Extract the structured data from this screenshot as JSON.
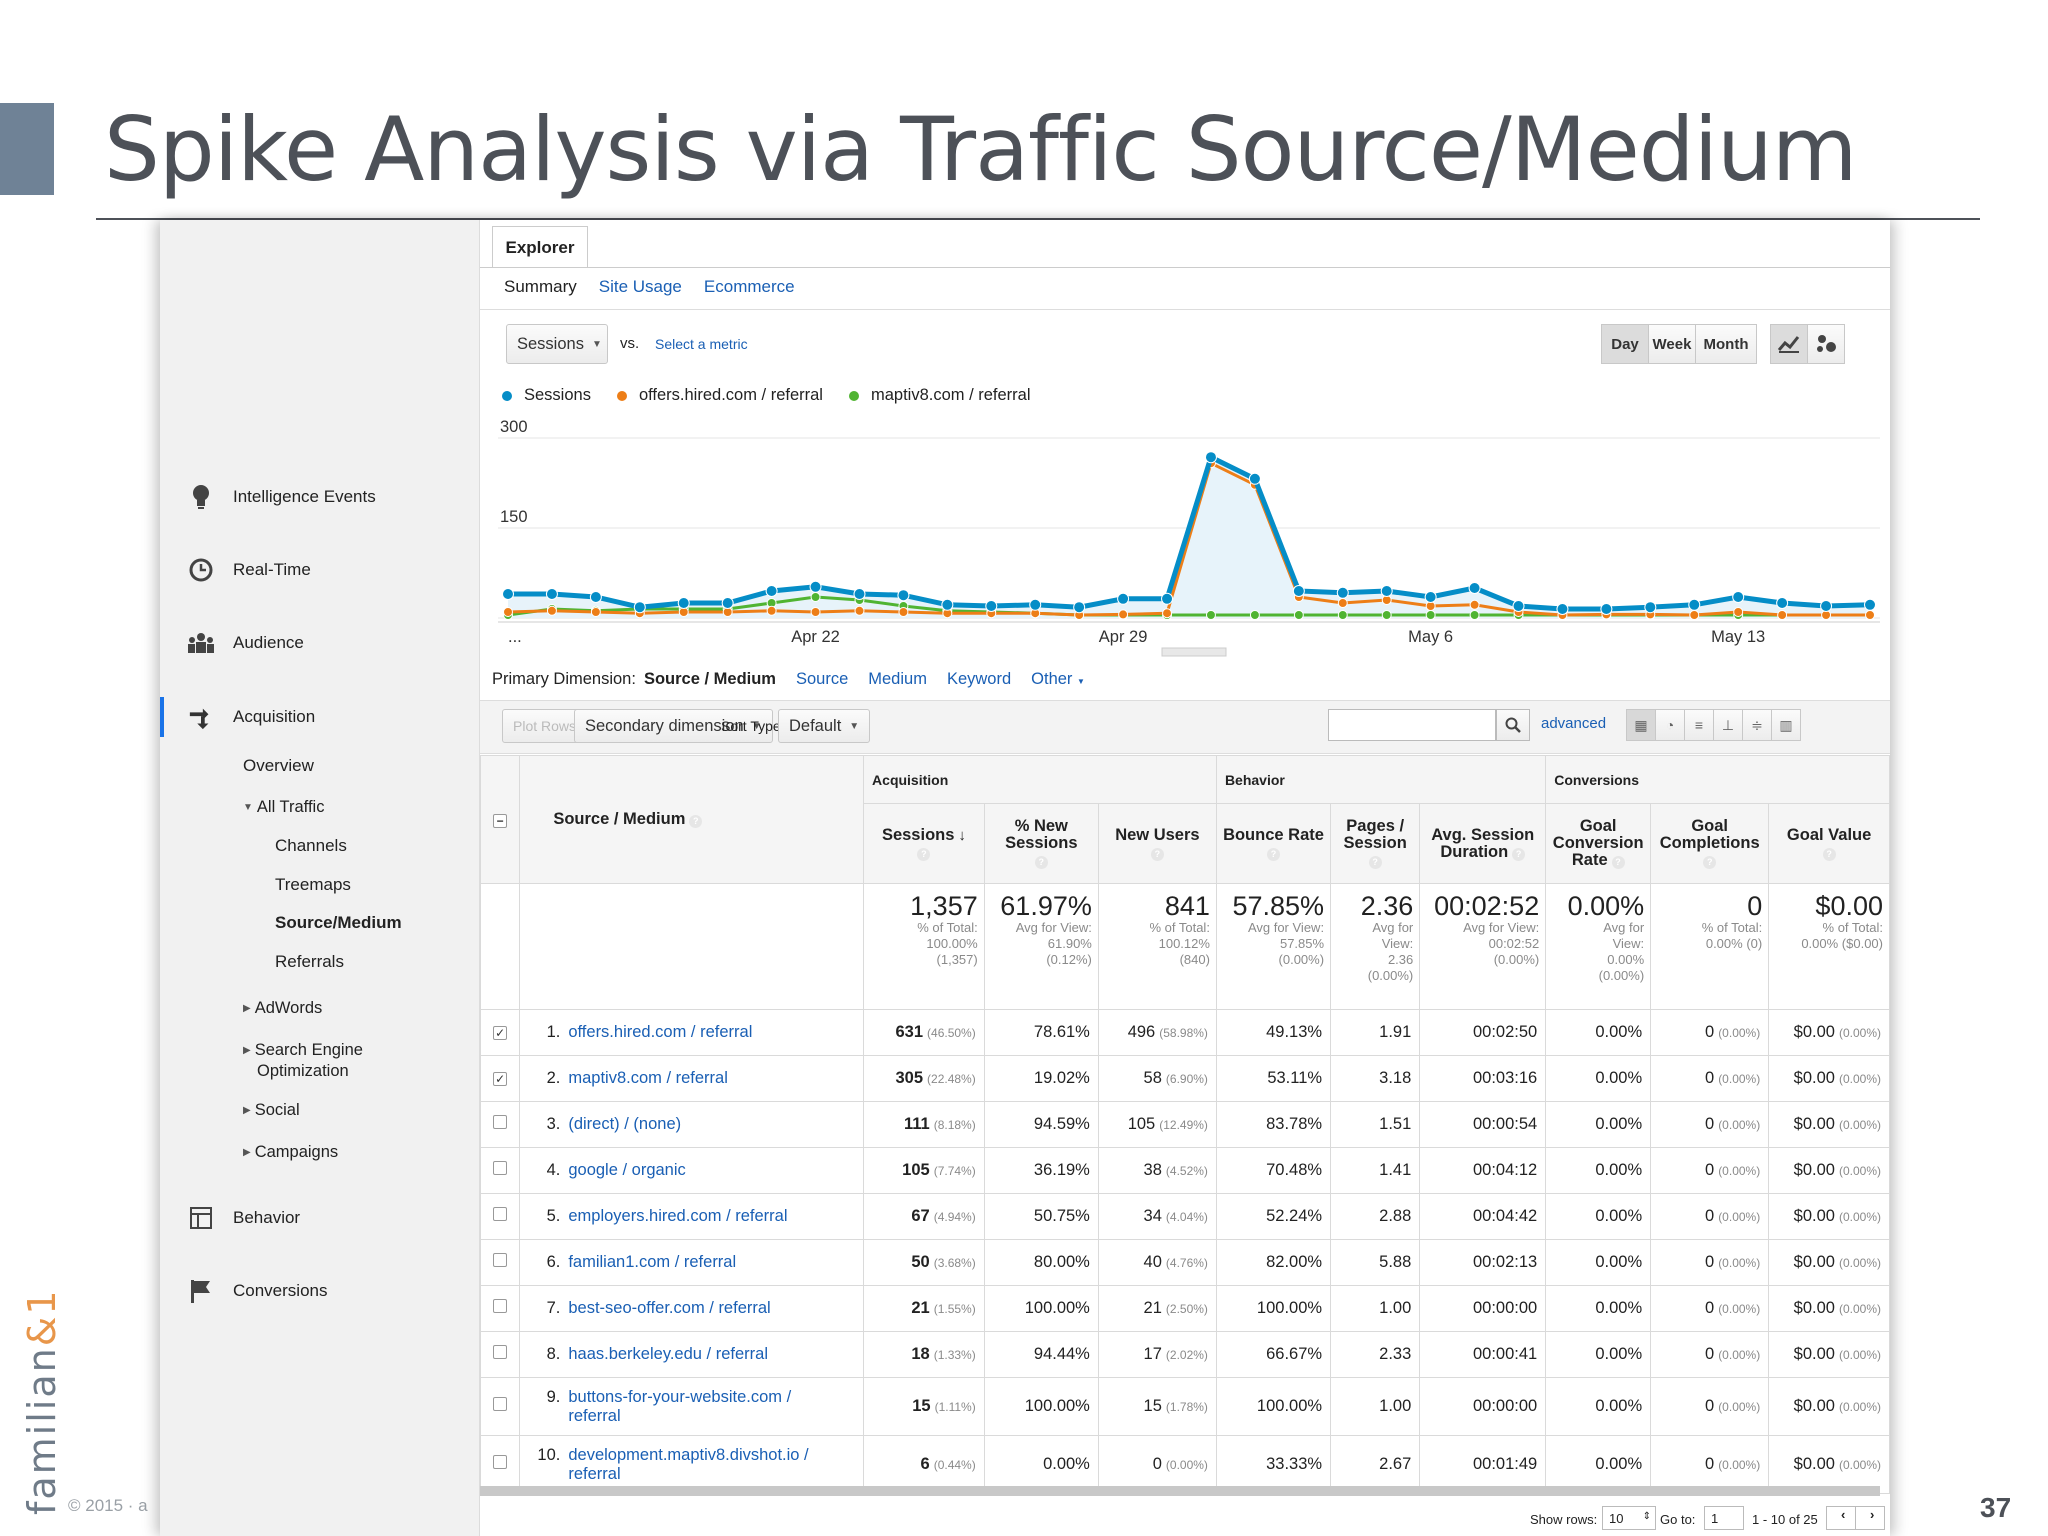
{
  "slide": {
    "title": "Spike Analysis via Traffic Source/Medium",
    "brand_main": "familian",
    "brand_accent": "&1",
    "footer": "© 2015 · a",
    "page_number": "37",
    "accent_color": "#6f8296"
  },
  "sidebar": {
    "main_items": [
      {
        "label": "Intelligence Events",
        "icon": "lightbulb-icon"
      },
      {
        "label": "Real-Time",
        "icon": "clock-icon"
      },
      {
        "label": "Audience",
        "icon": "people-icon"
      },
      {
        "label": "Acquisition",
        "icon": "acquisition-arrows-icon"
      },
      {
        "label": "Behavior",
        "icon": "window-icon"
      },
      {
        "label": "Conversions",
        "icon": "flag-icon"
      }
    ],
    "acq_sub": {
      "overview": "Overview",
      "all_traffic": "All Traffic",
      "channels": "Channels",
      "treemaps": "Treemaps",
      "source_medium": "Source/Medium",
      "referrals": "Referrals",
      "adwords": "AdWords",
      "seo_line1": "Search Engine",
      "seo_line2": "Optimization",
      "social": "Social",
      "campaigns": "Campaigns"
    }
  },
  "explorer": {
    "tab": "Explorer",
    "subtabs": [
      "Summary",
      "Site Usage",
      "Ecommerce"
    ],
    "metric_select": "Sessions",
    "vs": "vs.",
    "select_metric": "Select a metric",
    "period_buttons": [
      "Day",
      "Week",
      "Month"
    ],
    "active_period": "Day"
  },
  "chart_data": {
    "type": "line",
    "title": "",
    "xlabel": "",
    "ylabel": "",
    "y_ticks": [
      "300",
      "150"
    ],
    "ylim": [
      0,
      300
    ],
    "x_tick_labels": [
      "...",
      "Apr 22",
      "Apr 29",
      "May 6",
      "May 13"
    ],
    "x_tick_index": [
      0,
      7,
      14,
      21,
      28
    ],
    "legend_position": "top-left",
    "series": [
      {
        "name": "Sessions",
        "color": "#058dc7",
        "values": [
          40,
          40,
          35,
          18,
          25,
          25,
          45,
          52,
          40,
          38,
          22,
          20,
          22,
          18,
          32,
          32,
          268,
          232,
          45,
          42,
          45,
          35,
          50,
          20,
          15,
          15,
          18,
          22,
          35,
          25,
          20,
          22
        ]
      },
      {
        "name": "offers.hired.com / referral",
        "color": "#ed7e17",
        "values": [
          10,
          12,
          10,
          8,
          10,
          10,
          12,
          10,
          12,
          10,
          8,
          8,
          8,
          5,
          6,
          8,
          258,
          222,
          35,
          25,
          30,
          20,
          22,
          10,
          5,
          6,
          6,
          5,
          10,
          5,
          5,
          5
        ]
      },
      {
        "name": "maptiv8.com / referral",
        "color": "#50b432",
        "values": [
          5,
          15,
          12,
          15,
          15,
          15,
          25,
          35,
          30,
          20,
          12,
          10,
          8,
          5,
          5,
          5,
          5,
          5,
          5,
          5,
          5,
          5,
          5,
          5,
          5,
          5,
          5,
          5,
          5,
          5,
          5,
          5
        ]
      }
    ]
  },
  "dimension": {
    "label": "Primary Dimension:",
    "current": "Source / Medium",
    "options": [
      "Source",
      "Medium",
      "Keyword",
      "Other"
    ]
  },
  "toolbar": {
    "plot_rows": "Plot Rows",
    "secondary": "Secondary dimension",
    "sort_label": "Sort Type:",
    "sort_value": "Default",
    "advanced": "advanced"
  },
  "table": {
    "groups": {
      "acquisition": "Acquisition",
      "behavior": "Behavior",
      "conversions": "Conversions"
    },
    "columns": {
      "source": "Source / Medium",
      "sessions": "Sessions",
      "new_sessions": [
        "% New",
        "Sessions"
      ],
      "new_users": "New Users",
      "bounce": "Bounce Rate",
      "pages": [
        "Pages /",
        "Session"
      ],
      "duration": [
        "Avg. Session",
        "Duration"
      ],
      "conv_rate": [
        "Goal",
        "Conversion",
        "Rate"
      ],
      "completions": [
        "Goal",
        "Completions"
      ],
      "goal_value": "Goal Value"
    },
    "totals": [
      {
        "big": "1,357",
        "sub": [
          "% of Total:",
          "100.00%",
          "(1,357)"
        ]
      },
      {
        "big": "61.97%",
        "sub": [
          "Avg for View:",
          "61.90%",
          "(0.12%)"
        ]
      },
      {
        "big": "841",
        "sub": [
          "% of Total:",
          "100.12%",
          "(840)"
        ]
      },
      {
        "big": "57.85%",
        "sub": [
          "Avg for View:",
          "57.85%",
          "(0.00%)"
        ]
      },
      {
        "big": "2.36",
        "sub": [
          "Avg for",
          "View:",
          "2.36",
          "(0.00%)"
        ]
      },
      {
        "big": "00:02:52",
        "sub": [
          "Avg for View:",
          "00:02:52",
          "(0.00%)"
        ]
      },
      {
        "big": "0.00%",
        "sub": [
          "Avg for",
          "View:",
          "0.00%",
          "(0.00%)"
        ]
      },
      {
        "big": "0",
        "sub": [
          "% of Total:",
          "0.00% (0)"
        ]
      },
      {
        "big": "$0.00",
        "sub": [
          "% of Total:",
          "0.00% ($0.00)"
        ]
      }
    ],
    "rows": [
      {
        "idx": "1.",
        "checked": true,
        "src": [
          "offers.hired.com / referral"
        ],
        "sessions": "631",
        "sessions_pct": "(46.50%)",
        "new_sessions": "78.61%",
        "new_users": "496",
        "new_users_pct": "(58.98%)",
        "bounce": "49.13%",
        "pages": "1.91",
        "duration": "00:02:50",
        "conv": "0.00%",
        "comp": "0",
        "comp_pct": "(0.00%)",
        "value": "$0.00",
        "value_pct": "(0.00%)"
      },
      {
        "idx": "2.",
        "checked": true,
        "src": [
          "maptiv8.com / referral"
        ],
        "sessions": "305",
        "sessions_pct": "(22.48%)",
        "new_sessions": "19.02%",
        "new_users": "58",
        "new_users_pct": "(6.90%)",
        "bounce": "53.11%",
        "pages": "3.18",
        "duration": "00:03:16",
        "conv": "0.00%",
        "comp": "0",
        "comp_pct": "(0.00%)",
        "value": "$0.00",
        "value_pct": "(0.00%)"
      },
      {
        "idx": "3.",
        "checked": false,
        "src": [
          "(direct) / (none)"
        ],
        "sessions": "111",
        "sessions_pct": "(8.18%)",
        "new_sessions": "94.59%",
        "new_users": "105",
        "new_users_pct": "(12.49%)",
        "bounce": "83.78%",
        "pages": "1.51",
        "duration": "00:00:54",
        "conv": "0.00%",
        "comp": "0",
        "comp_pct": "(0.00%)",
        "value": "$0.00",
        "value_pct": "(0.00%)"
      },
      {
        "idx": "4.",
        "checked": false,
        "src": [
          "google / organic"
        ],
        "sessions": "105",
        "sessions_pct": "(7.74%)",
        "new_sessions": "36.19%",
        "new_users": "38",
        "new_users_pct": "(4.52%)",
        "bounce": "70.48%",
        "pages": "1.41",
        "duration": "00:04:12",
        "conv": "0.00%",
        "comp": "0",
        "comp_pct": "(0.00%)",
        "value": "$0.00",
        "value_pct": "(0.00%)"
      },
      {
        "idx": "5.",
        "checked": false,
        "src": [
          "employers.hired.com / referral"
        ],
        "sessions": "67",
        "sessions_pct": "(4.94%)",
        "new_sessions": "50.75%",
        "new_users": "34",
        "new_users_pct": "(4.04%)",
        "bounce": "52.24%",
        "pages": "2.88",
        "duration": "00:04:42",
        "conv": "0.00%",
        "comp": "0",
        "comp_pct": "(0.00%)",
        "value": "$0.00",
        "value_pct": "(0.00%)"
      },
      {
        "idx": "6.",
        "checked": false,
        "src": [
          "familian1.com / referral"
        ],
        "sessions": "50",
        "sessions_pct": "(3.68%)",
        "new_sessions": "80.00%",
        "new_users": "40",
        "new_users_pct": "(4.76%)",
        "bounce": "82.00%",
        "pages": "5.88",
        "duration": "00:02:13",
        "conv": "0.00%",
        "comp": "0",
        "comp_pct": "(0.00%)",
        "value": "$0.00",
        "value_pct": "(0.00%)"
      },
      {
        "idx": "7.",
        "checked": false,
        "src": [
          "best-seo-offer.com / referral"
        ],
        "sessions": "21",
        "sessions_pct": "(1.55%)",
        "new_sessions": "100.00%",
        "new_users": "21",
        "new_users_pct": "(2.50%)",
        "bounce": "100.00%",
        "pages": "1.00",
        "duration": "00:00:00",
        "conv": "0.00%",
        "comp": "0",
        "comp_pct": "(0.00%)",
        "value": "$0.00",
        "value_pct": "(0.00%)"
      },
      {
        "idx": "8.",
        "checked": false,
        "src": [
          "haas.berkeley.edu / referral"
        ],
        "sessions": "18",
        "sessions_pct": "(1.33%)",
        "new_sessions": "94.44%",
        "new_users": "17",
        "new_users_pct": "(2.02%)",
        "bounce": "66.67%",
        "pages": "2.33",
        "duration": "00:00:41",
        "conv": "0.00%",
        "comp": "0",
        "comp_pct": "(0.00%)",
        "value": "$0.00",
        "value_pct": "(0.00%)"
      },
      {
        "idx": "9.",
        "checked": false,
        "src": [
          "buttons-for-your-website.com /",
          "referral"
        ],
        "sessions": "15",
        "sessions_pct": "(1.11%)",
        "new_sessions": "100.00%",
        "new_users": "15",
        "new_users_pct": "(1.78%)",
        "bounce": "100.00%",
        "pages": "1.00",
        "duration": "00:00:00",
        "conv": "0.00%",
        "comp": "0",
        "comp_pct": "(0.00%)",
        "value": "$0.00",
        "value_pct": "(0.00%)"
      },
      {
        "idx": "10.",
        "checked": false,
        "src": [
          "development.maptiv8.divshot.io /",
          "referral"
        ],
        "sessions": "6",
        "sessions_pct": "(0.44%)",
        "new_sessions": "0.00%",
        "new_users": "0",
        "new_users_pct": "(0.00%)",
        "bounce": "33.33%",
        "pages": "2.67",
        "duration": "00:01:49",
        "conv": "0.00%",
        "comp": "0",
        "comp_pct": "(0.00%)",
        "value": "$0.00",
        "value_pct": "(0.00%)"
      }
    ]
  },
  "pager": {
    "show_rows_label": "Show rows:",
    "show_rows_value": "10",
    "goto_label": "Go to:",
    "goto_value": "1",
    "range": "1 - 10 of 25"
  }
}
